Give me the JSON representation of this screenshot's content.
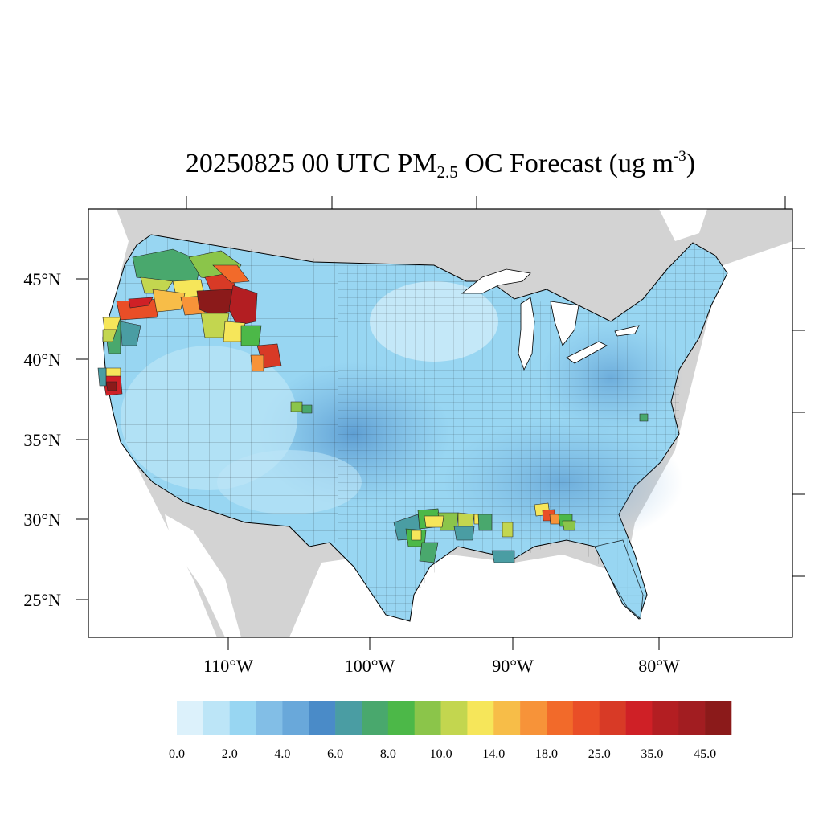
{
  "title": {
    "date": "20250825",
    "time": "00 UTC",
    "species": "PM",
    "species_sub": "2.5",
    "rest": "OC Forecast (ug m",
    "unit_sup": "-3",
    "close": ")"
  },
  "axes": {
    "lat_labels": [
      "45°N",
      "40°N",
      "35°N",
      "30°N",
      "25°N"
    ],
    "lon_labels": [
      "110°W",
      "100°W",
      "90°W",
      "80°W"
    ]
  },
  "colorbar": {
    "labels": [
      "0.0",
      "2.0",
      "4.0",
      "6.0",
      "8.0",
      "10.0",
      "14.0",
      "18.0",
      "25.0",
      "35.0",
      "45.0"
    ],
    "colors": [
      "#dcf1fb",
      "#bce5f7",
      "#98d6f2",
      "#82bee6",
      "#69a8da",
      "#4a8bc8",
      "#4a9da3",
      "#49a86d",
      "#4cb848",
      "#8bc54a",
      "#c3d64f",
      "#f6e65a",
      "#f7bd48",
      "#f79339",
      "#f26a2a",
      "#e94e27",
      "#d83a26",
      "#cf2026",
      "#b31e22",
      "#a21d21",
      "#8b1a1a"
    ]
  },
  "map": {
    "land_outside_color": "#d3d3d3",
    "water_color": "#ffffff",
    "hotspots": [
      {
        "region": "Pacific Northwest",
        "level": "45.0"
      },
      {
        "region": "Northern California",
        "level": "45.0"
      },
      {
        "region": "Wyoming",
        "level": "35.0"
      },
      {
        "region": "East Texas / Louisiana",
        "level": "14.0"
      },
      {
        "region": "Alabama",
        "level": "25.0"
      }
    ]
  }
}
